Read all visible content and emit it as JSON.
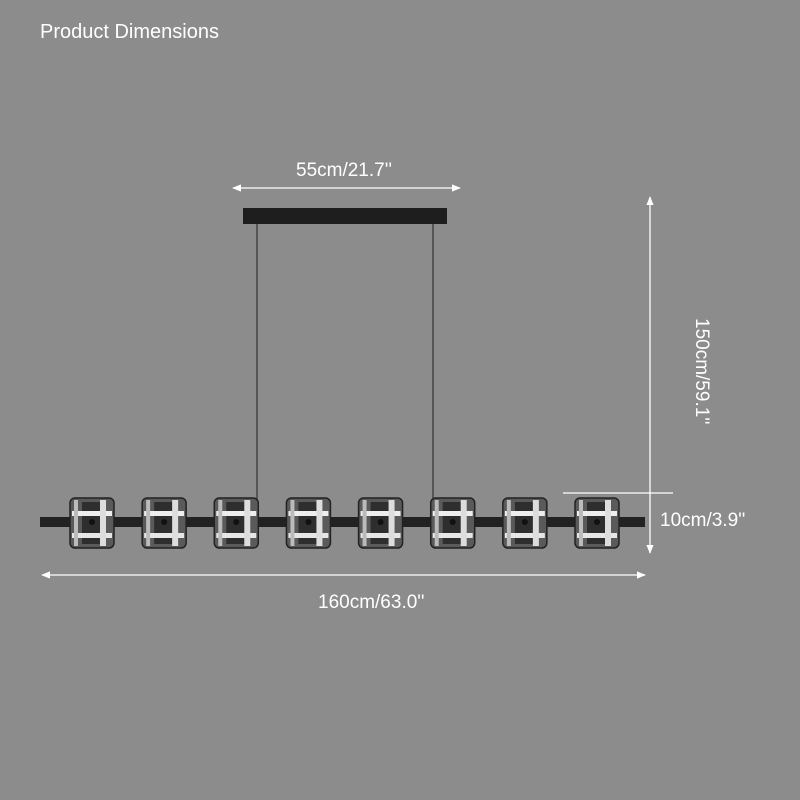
{
  "title": "Product Dimensions",
  "dimensions": {
    "width_canopy": "55cm/21.7''",
    "height_total": "150cm/59.1''",
    "shade_height": "10cm/3.9''",
    "length": "160cm/63.0''"
  },
  "shade_count": 8,
  "colors": {
    "background": "#8c8c8c",
    "fixture": "#222222",
    "lines": "#ffffff"
  }
}
